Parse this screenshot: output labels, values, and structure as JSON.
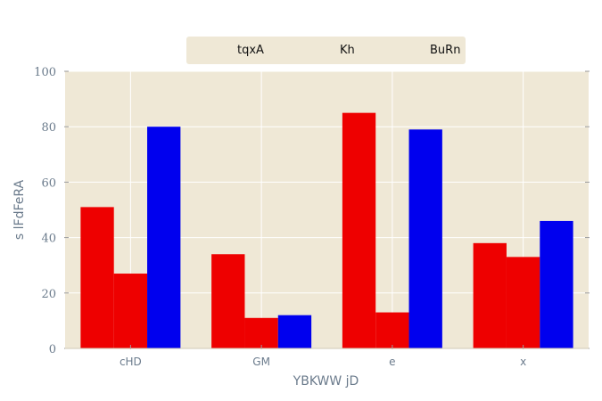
{
  "chart_data": {
    "type": "bar",
    "title": "",
    "xlabel": "YBKWW jD",
    "ylabel": "s lFdFeRA",
    "categories": [
      "cHD",
      "GM",
      "e",
      "x"
    ],
    "ylim": [
      0,
      100
    ],
    "yticks": [
      0,
      20,
      40,
      60,
      80,
      100
    ],
    "grid": true,
    "legend_position": "top-center",
    "series": [
      {
        "name": "tqxA",
        "color": "#ee0000",
        "values": [
          51,
          34,
          85,
          38
        ]
      },
      {
        "name": "Kh",
        "color": "#ee0000",
        "values": [
          27,
          11,
          13,
          33
        ]
      },
      {
        "name": "BuRn",
        "color": "#0000ee",
        "values": [
          80,
          12,
          79,
          46
        ]
      }
    ],
    "colors": {
      "plot_background": "#efe8d6",
      "grid": "#ffffff",
      "axis_text": "#6b7b8c"
    }
  }
}
